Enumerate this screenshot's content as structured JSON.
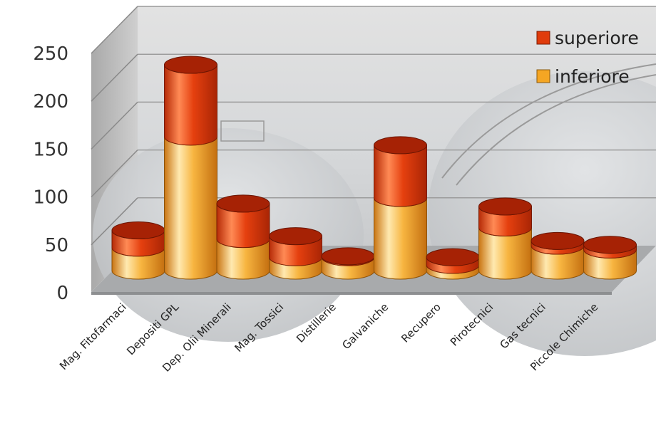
{
  "chart_data": {
    "type": "bar",
    "stacked": true,
    "three_d": true,
    "categories": [
      "Mag. Fitofarmaci",
      "Depositi GPL",
      "Dep. Olii Minerali",
      "Mag. Tossici",
      "Distillerie",
      "Galvaniche",
      "Recupero",
      "Pirotecnici",
      "Gas tecnici",
      "Piccole Chimiche"
    ],
    "series": [
      {
        "name": "inferiore",
        "color": "#f5a623",
        "values": [
          24,
          140,
          33,
          14,
          14,
          76,
          6,
          45,
          26,
          22
        ]
      },
      {
        "name": "superiore",
        "color": "#e03c0c",
        "values": [
          18,
          75,
          37,
          22,
          1,
          55,
          8,
          22,
          5,
          5
        ]
      }
    ],
    "ylim": [
      0,
      250
    ],
    "yticks": [
      "0",
      "50",
      "100",
      "150",
      "200",
      "250"
    ],
    "legend_position": "top-right",
    "grid": true
  }
}
